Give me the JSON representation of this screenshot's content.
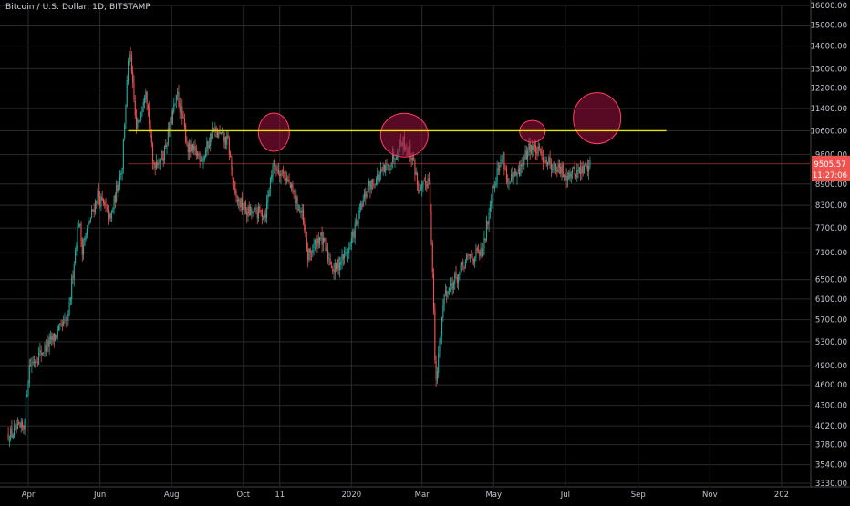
{
  "chart_title": "Bitcoin / U.S. Dollar, 1D, BITSTAMP",
  "colors": {
    "background": "#000000",
    "grid": "#2a2a2a",
    "up_candle": "#26a69a",
    "down_candle": "#ef5350",
    "support_line": "#e6e600",
    "circle_fill": "#a01040",
    "circle_stroke": "#ff4060",
    "price_tag": "#ef5350",
    "axis_text": "#c3c6ce"
  },
  "chart_data": {
    "type": "candlestick",
    "title": "Bitcoin / U.S. Dollar, 1D, BITSTAMP",
    "symbol": "BTCUSD",
    "exchange": "BITSTAMP",
    "interval": "1D",
    "x_tick_labels": [
      "Apr",
      "Jun",
      "Aug",
      "Oct",
      "11",
      "2020",
      "Mar",
      "May",
      "Jul",
      "Sep",
      "Nov",
      "202"
    ],
    "y_tick_labels": [
      "16000.00",
      "15000.00",
      "14000.00",
      "13000.00",
      "12200.00",
      "11400.00",
      "10600.00",
      "9800.00",
      "8900.00",
      "8300.00",
      "7700.00",
      "7100.00",
      "6500.00",
      "6100.00",
      "5700.00",
      "5300.00",
      "4900.00",
      "4600.00",
      "4300.00",
      "4020.00",
      "3780.00",
      "3540.00",
      "3330.00"
    ],
    "y_axis_scale": "log",
    "ylim": [
      3330,
      16000
    ],
    "current_price": "9505.57",
    "countdown": "11:27:06",
    "price_path": [
      [
        "2019-03-15",
        3900
      ],
      [
        "2019-03-28",
        4000
      ],
      [
        "2019-04-02",
        4900
      ],
      [
        "2019-04-20",
        5300
      ],
      [
        "2019-05-05",
        5700
      ],
      [
        "2019-05-14",
        7900
      ],
      [
        "2019-05-17",
        7200
      ],
      [
        "2019-05-30",
        8600
      ],
      [
        "2019-06-10",
        7900
      ],
      [
        "2019-06-20",
        9500
      ],
      [
        "2019-06-26",
        13800
      ],
      [
        "2019-07-02",
        10600
      ],
      [
        "2019-07-10",
        12300
      ],
      [
        "2019-07-16",
        9500
      ],
      [
        "2019-07-25",
        9800
      ],
      [
        "2019-08-06",
        11900
      ],
      [
        "2019-08-15",
        10000
      ],
      [
        "2019-08-28",
        9700
      ],
      [
        "2019-09-05",
        10600
      ],
      [
        "2019-09-18",
        10200
      ],
      [
        "2019-09-24",
        8500
      ],
      [
        "2019-10-05",
        8100
      ],
      [
        "2019-10-20",
        8100
      ],
      [
        "2019-10-26",
        9500
      ],
      [
        "2019-11-05",
        9200
      ],
      [
        "2019-11-20",
        8000
      ],
      [
        "2019-11-25",
        7000
      ],
      [
        "2019-12-05",
        7500
      ],
      [
        "2019-12-17",
        6700
      ],
      [
        "2019-12-30",
        7200
      ],
      [
        "2020-01-15",
        8800
      ],
      [
        "2020-02-01",
        9400
      ],
      [
        "2020-02-13",
        10300
      ],
      [
        "2020-02-22",
        9700
      ],
      [
        "2020-02-28",
        8600
      ],
      [
        "2020-03-07",
        9100
      ],
      [
        "2020-03-12",
        5000
      ],
      [
        "2020-03-13",
        4600
      ],
      [
        "2020-03-20",
        6200
      ],
      [
        "2020-04-01",
        6600
      ],
      [
        "2020-04-10",
        7000
      ],
      [
        "2020-04-22",
        7100
      ],
      [
        "2020-04-30",
        8800
      ],
      [
        "2020-05-09",
        9800
      ],
      [
        "2020-05-13",
        8900
      ],
      [
        "2020-05-22",
        9200
      ],
      [
        "2020-06-01",
        10100
      ],
      [
        "2020-06-10",
        9800
      ],
      [
        "2020-06-22",
        9400
      ],
      [
        "2020-07-01",
        9200
      ],
      [
        "2020-07-15",
        9300
      ],
      [
        "2020-07-22",
        9505.57
      ]
    ],
    "annotations": {
      "horizontal_line": {
        "price": 10600,
        "from": "2019-06-25",
        "to": "2020-09-25",
        "color": "#e6e600"
      },
      "highlight_circles": [
        {
          "date": "2019-10-27",
          "price": 10550,
          "label": ""
        },
        {
          "date": "2020-02-15",
          "price": 10450,
          "label": ""
        },
        {
          "date": "2020-06-03",
          "price": 10580,
          "label": ""
        },
        {
          "date": "2020-07-28",
          "price": 11050,
          "label": ""
        }
      ],
      "current_price_line": {
        "price": 9505.57,
        "color": "#ef5350"
      }
    },
    "grid": true
  }
}
